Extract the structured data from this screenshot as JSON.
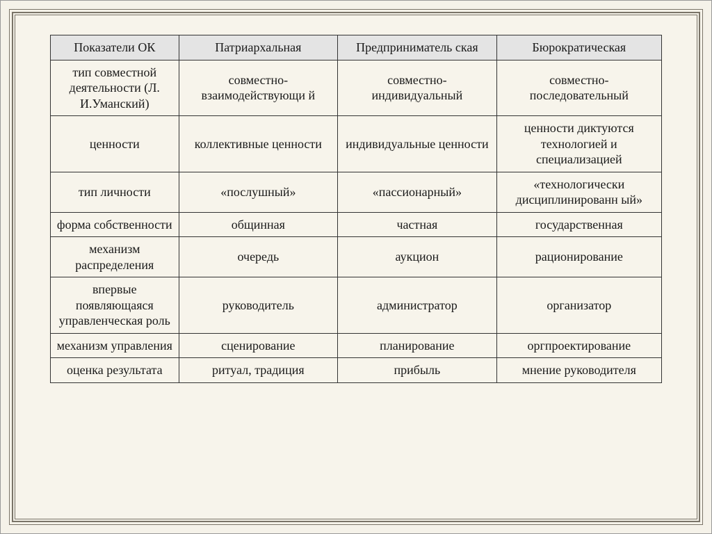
{
  "table": {
    "columns": [
      "Показатели ОК",
      "Патриархальная",
      "Предприниматель ская",
      "Бюрократическая"
    ],
    "rows": [
      [
        "тип совместной деятельности (Л. И.Уманский)",
        "совместно-взаимодействующи й",
        "совместно-индивидуальный",
        "совместно-последовательный"
      ],
      [
        "ценности",
        "коллективные ценности",
        "индивидуальные ценности",
        "ценности диктуются технологией и специализацией"
      ],
      [
        "тип личности",
        "«послушный»",
        "«пассионарный»",
        "«технологически дисциплинированн ый»"
      ],
      [
        "форма собственности",
        "общинная",
        "частная",
        "государственная"
      ],
      [
        "механизм распределения",
        "очередь",
        "аукцион",
        "рационирование"
      ],
      [
        "впервые появляющаяся управленческая роль",
        "руководитель",
        "администратор",
        "организатор"
      ],
      [
        "механизм управления",
        "сценирование",
        "планирование",
        "оргпроектирование"
      ],
      [
        "оценка результата",
        "ритуал, традиция",
        "прибыль",
        "мнение руководителя"
      ]
    ],
    "header_bg": "#e4e4e4",
    "page_bg": "#f7f4eb",
    "border_color": "#333333",
    "font_family": "Georgia",
    "font_size_pt": 14
  }
}
